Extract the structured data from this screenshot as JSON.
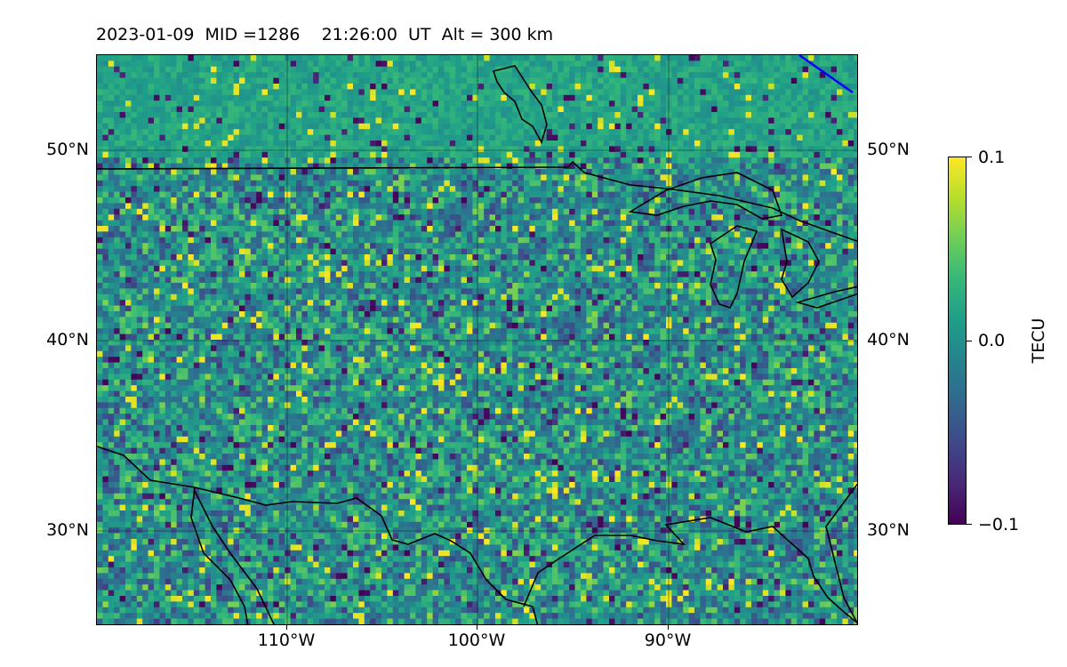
{
  "title": "2023-01-09  MID =1286    21:26:00  UT  Alt = 300 km",
  "map": {
    "extent": {
      "lon_min": -120,
      "lon_max": -80,
      "lat_min": 25,
      "lat_max": 55
    },
    "lat_labels_left": [
      "50°N",
      "40°N",
      "30°N"
    ],
    "lat_labels_right": [
      "50°N",
      "40°N",
      "30°N"
    ],
    "lon_labels": [
      "110°W",
      "100°W",
      "90°W"
    ],
    "colormap": "viridis",
    "coastline_color": "#000000",
    "terminator_color": "#0000ff"
  },
  "colorbar": {
    "label": "TECU",
    "ticks": [
      "0.1",
      "0.0",
      "−0.1"
    ],
    "min": -0.1,
    "max": 0.1
  }
}
